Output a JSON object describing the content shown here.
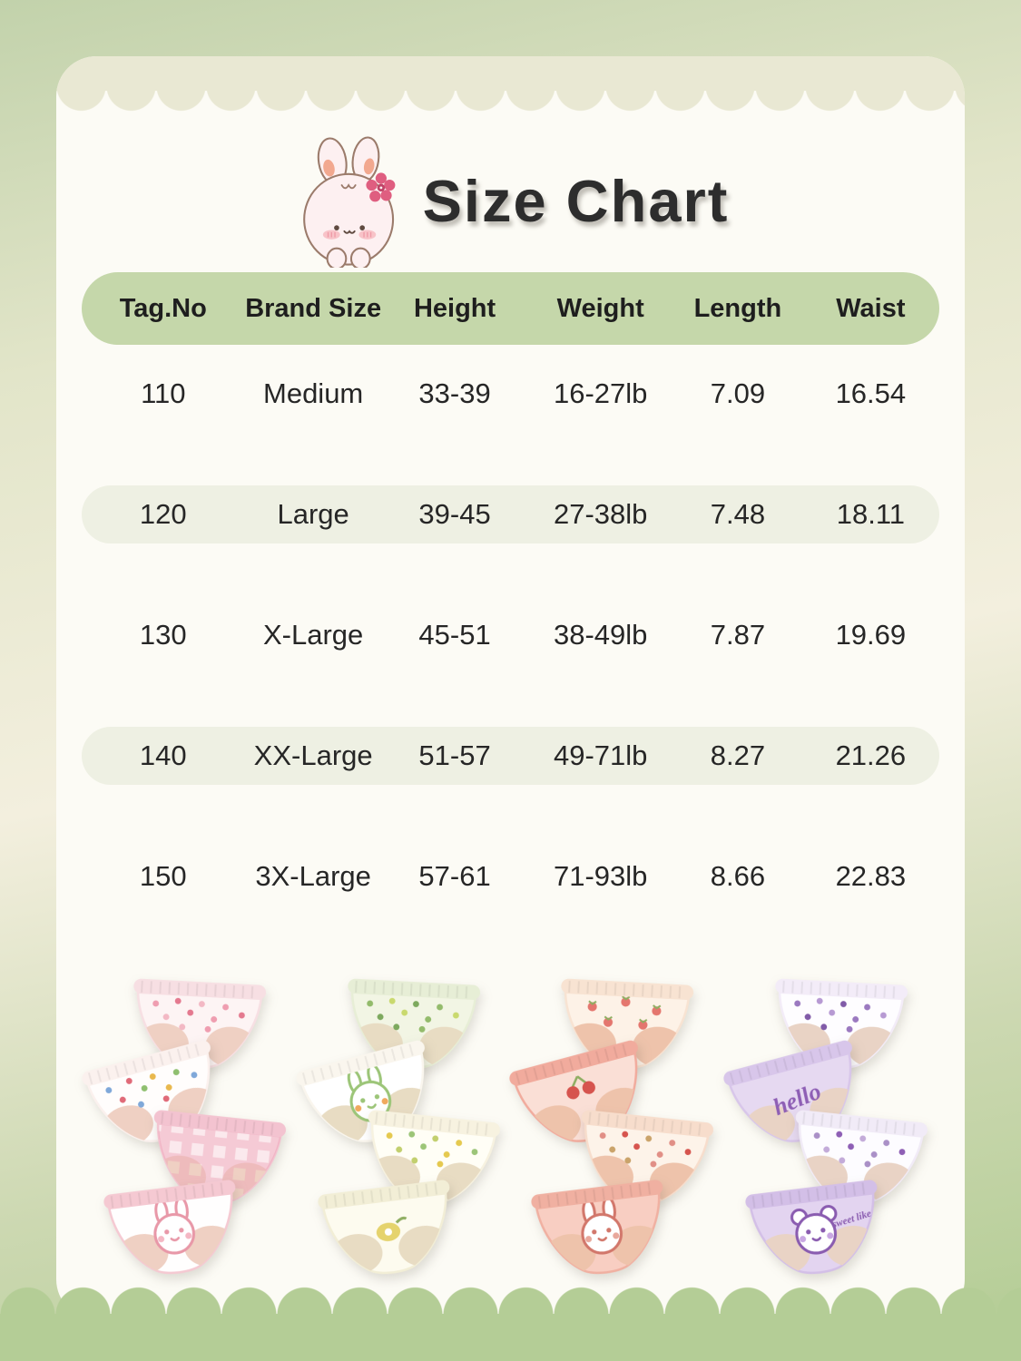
{
  "header": {
    "title": "Size Chart",
    "icon": "bunny-with-flower"
  },
  "colors": {
    "bg_top": "#c2d2ab",
    "bg_mid": "#f3efde",
    "bg_bottom": "#b2cc93",
    "card": "#fcfbf5",
    "top_band": "#e9e8d3",
    "bottom_band": "#b4cd96",
    "header_pill": "#c5d7aa",
    "row_stripe": "#eef0e3",
    "title_text": "#2d2d2d",
    "table_text": "#262626"
  },
  "table": {
    "columns": [
      "Tag.No",
      "Brand Size",
      "Height",
      "Weight",
      "Length",
      "Waist"
    ],
    "rows": [
      [
        "110",
        "Medium",
        "33-39",
        "16-27lb",
        "7.09",
        "16.54"
      ],
      [
        "120",
        "Large",
        "39-45",
        "27-38lb",
        "7.48",
        "18.11"
      ],
      [
        "130",
        "X-Large",
        "45-51",
        "38-49lb",
        "7.87",
        "19.69"
      ],
      [
        "140",
        "XX-Large",
        "51-57",
        "49-71lb",
        "8.27",
        "21.26"
      ],
      [
        "150",
        "3X-Large",
        "57-61",
        "71-93lb",
        "8.66",
        "22.83"
      ]
    ],
    "striped_rows": [
      1,
      3
    ]
  },
  "products": {
    "groups": [
      {
        "id": "pink-set",
        "hole": "#efd0c3",
        "briefs": [
          {
            "base": "#fdf4f4",
            "band": "#f7dfe3",
            "accent": "#ef9db0",
            "palette": [
              "#ef9db0",
              "#e4798f",
              "#f3b8c4"
            ],
            "motif": "dots"
          },
          {
            "base": "#fffdfc",
            "band": "#fbf1ee",
            "accent": "#e06a78",
            "palette": [
              "#7fa8d9",
              "#e06a78",
              "#e9b84d",
              "#8fbf6f"
            ],
            "motif": "scatter"
          },
          {
            "base": "#fbe9ed",
            "band": "#f3c3d0",
            "accent": "#ee9cb2",
            "motif": "check"
          },
          {
            "base": "#fffefe",
            "band": "#f5c9d2",
            "accent": "#e898a8",
            "palette": [
              "#e898a8",
              "#f4b8c4"
            ],
            "motif": "bunny"
          }
        ]
      },
      {
        "id": "green-set",
        "hole": "#e8dcc3",
        "briefs": [
          {
            "base": "#f2f5e4",
            "band": "#e7eed6",
            "accent": "#93bb6b",
            "palette": [
              "#93bb6b",
              "#c9d96e",
              "#7da95e"
            ],
            "motif": "scatter"
          },
          {
            "base": "#ffffff",
            "band": "#faf6ee",
            "accent": "#9cc578",
            "palette": [
              "#9cc578",
              "#f0a95e"
            ],
            "motif": "bunny"
          },
          {
            "base": "#fffef6",
            "band": "#f7f2e0",
            "accent": "#c2cf6e",
            "palette": [
              "#e5c94f",
              "#9cc578",
              "#c2cf6e"
            ],
            "motif": "scatter"
          },
          {
            "base": "#fdfbef",
            "band": "#f2eed6",
            "accent": "#e2ce5e",
            "motif": "lemon"
          }
        ]
      },
      {
        "id": "peach-set",
        "hole": "#eec3ab",
        "briefs": [
          {
            "base": "#fdf2e7",
            "band": "#f8e3d2",
            "accent": "#e4766e",
            "motif": "strawberry"
          },
          {
            "base": "#fadfd6",
            "band": "#f1ab9d",
            "accent": "#d6544e",
            "motif": "berries"
          },
          {
            "base": "#fdf3e9",
            "band": "#f7ddcc",
            "accent": "#e18f86",
            "palette": [
              "#e18f86",
              "#d6544e",
              "#caa36a"
            ],
            "motif": "scatter"
          },
          {
            "base": "#f8cec2",
            "band": "#f0b0a1",
            "accent": "#d2776b",
            "palette": [
              "#d2776b",
              "#e8a79b"
            ],
            "motif": "bunny"
          }
        ]
      },
      {
        "id": "purple-set",
        "hole": "#e9d3c5",
        "briefs": [
          {
            "base": "#fefdff",
            "band": "#f3ecf8",
            "accent": "#9b79c0",
            "palette": [
              "#9b79c0",
              "#b79ad3",
              "#815ba8"
            ],
            "motif": "scatter"
          },
          {
            "base": "#e6d9f1",
            "band": "#d8c6ea",
            "accent": "#8e5fb5",
            "motif": "text",
            "text": "hello"
          },
          {
            "base": "#fdfcff",
            "band": "#f1ebf7",
            "accent": "#aa90c7",
            "palette": [
              "#aa90c7",
              "#8e5fb5",
              "#c3abd9"
            ],
            "motif": "scatter"
          },
          {
            "base": "#e3d4f0",
            "band": "#d3bfe7",
            "accent": "#8a5cb0",
            "palette": [
              "#8a5cb0",
              "#c9a7e2"
            ],
            "motif": "bear",
            "text": "sweet like"
          }
        ]
      }
    ]
  }
}
